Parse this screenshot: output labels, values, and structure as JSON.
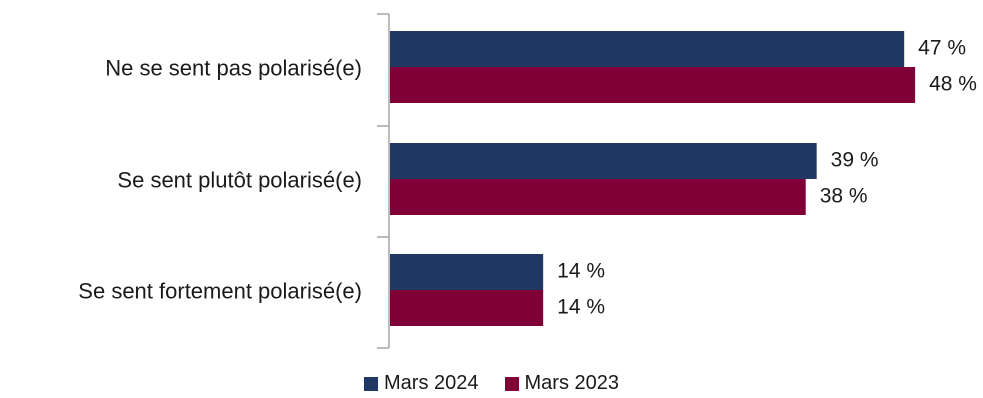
{
  "chart_data": {
    "type": "bar",
    "orientation": "horizontal",
    "categories": [
      "Ne se sent pas polarisé(e)",
      "Se sent plutôt polarisé(e)",
      "Se sent fortement polarisé(e)"
    ],
    "series": [
      {
        "name": "Mars 2024",
        "color": "#1f3864",
        "values": [
          47,
          39,
          14
        ],
        "labels": [
          "47 %",
          "39 %",
          "14 %"
        ]
      },
      {
        "name": "Mars 2023",
        "color": "#7f0037",
        "values": [
          48,
          38,
          14
        ],
        "labels": [
          "48 %",
          "38 %",
          "14 %"
        ]
      }
    ],
    "xlim": [
      0,
      50
    ],
    "grid": false,
    "legend_position": "bottom",
    "title": "",
    "xlabel": "",
    "ylabel": ""
  }
}
